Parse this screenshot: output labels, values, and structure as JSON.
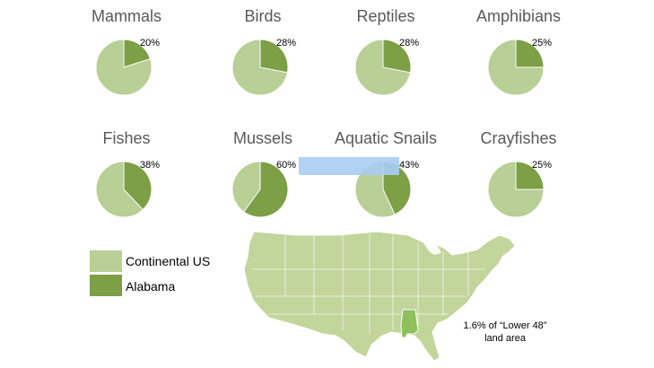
{
  "colors": {
    "continental_us": "#b8cf95",
    "alabama": "#7d9f45",
    "map_fill": "#c2d59b",
    "map_state": "#8ec05b",
    "highlight": "#a9cdf3"
  },
  "chart_data": {
    "type": "pie",
    "charts": [
      {
        "title": "Mammals",
        "alabama_pct": 20,
        "label": "20%"
      },
      {
        "title": "Birds",
        "alabama_pct": 28,
        "label": "28%"
      },
      {
        "title": "Reptiles",
        "alabama_pct": 28,
        "label": "28%"
      },
      {
        "title": "Amphibians",
        "alabama_pct": 25,
        "label": "25%"
      },
      {
        "title": "Fishes",
        "alabama_pct": 38,
        "label": "38%"
      },
      {
        "title": "Mussels",
        "alabama_pct": 60,
        "label": "60%"
      },
      {
        "title": "Aquatic Snails",
        "alabama_pct": 43,
        "label": "43%"
      },
      {
        "title": "Crayfishes",
        "alabama_pct": 25,
        "label": "25%"
      }
    ],
    "legend": [
      {
        "name": "Continental US",
        "color": "#b8cf95"
      },
      {
        "name": "Alabama",
        "color": "#7d9f45"
      }
    ]
  },
  "map": {
    "note_line1": "1.6% of “Lower 48”",
    "note_line2": "land area"
  }
}
